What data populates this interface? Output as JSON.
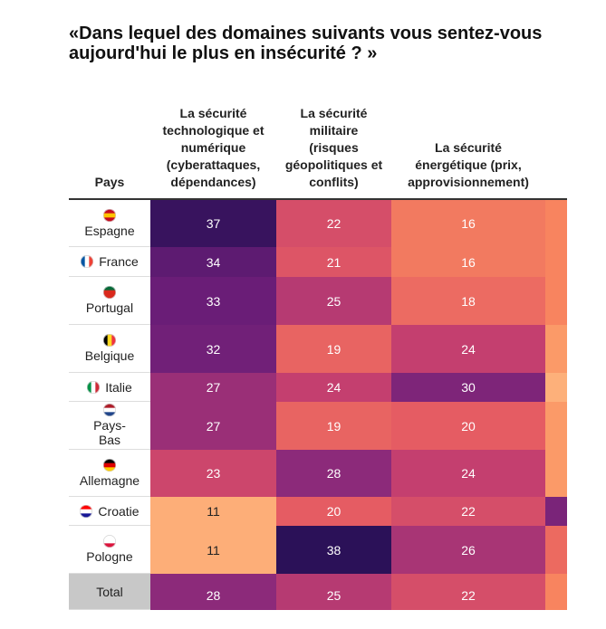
{
  "title": "«Dans lequel des domaines suivants vous sentez-vous aujourd'hui le plus en insécurité ? »",
  "table": {
    "header": [
      "Pays",
      "La sécurité technologique et numérique (cyberattaques, dépendances)",
      "La sécurité militaire (risques géopolitiques et conflits)",
      "La sécurité énergétique (prix, approvisionnement)"
    ],
    "rows": [
      [
        "Espagne",
        37,
        22,
        16
      ],
      [
        "France",
        34,
        21,
        16
      ],
      [
        "Portugal",
        33,
        25,
        18
      ],
      [
        "Belgique",
        32,
        19,
        24
      ],
      [
        "Italie",
        27,
        24,
        30
      ],
      [
        "Pays-Bas",
        27,
        19,
        20
      ],
      [
        "Allemagne",
        23,
        28,
        24
      ],
      [
        "Croatie",
        11,
        20,
        22
      ],
      [
        "Pologne",
        11,
        38,
        26
      ],
      [
        "Total",
        28,
        25,
        22
      ]
    ]
  }
}
